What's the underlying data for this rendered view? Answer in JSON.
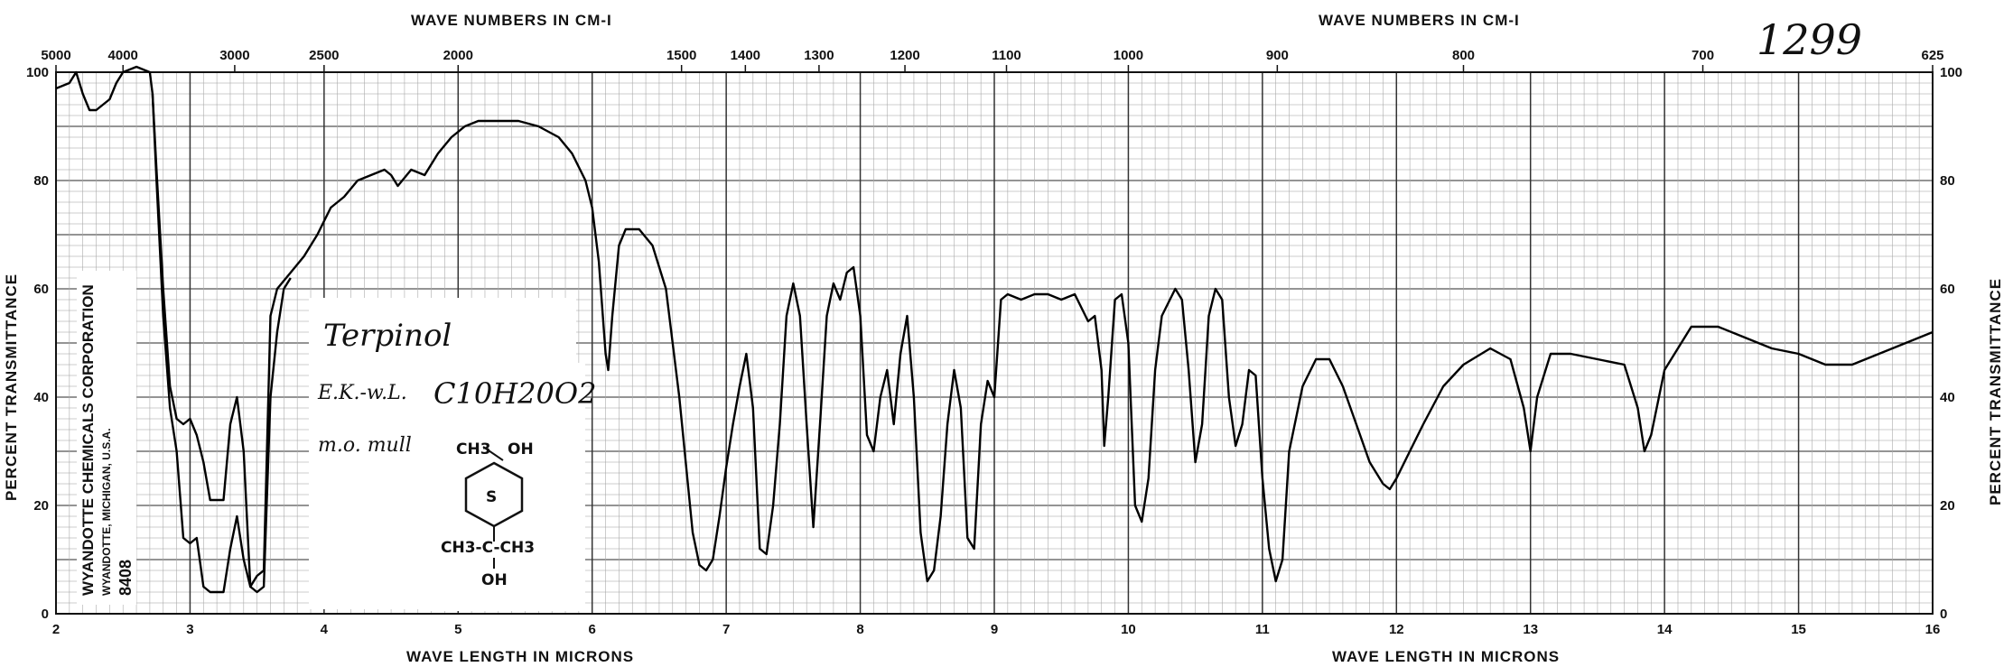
{
  "chart_data": {
    "type": "line",
    "title": "",
    "spectrum_number": "1299",
    "top_axis_title": "WAVE NUMBERS IN CM-I",
    "bottom_axis_title": "WAVE LENGTH IN MICRONS",
    "left_axis_title": "PERCENT TRANSMITTANCE",
    "right_axis_title": "PERCENT TRANSMITTANCE",
    "xlim": [
      2,
      16
    ],
    "ylim": [
      0,
      100
    ],
    "x_ticks": [
      "2",
      "3",
      "4",
      "5",
      "6",
      "7",
      "8",
      "9",
      "10",
      "11",
      "12",
      "13",
      "14",
      "15",
      "16"
    ],
    "y_ticks_left": [
      "0",
      "20",
      "40",
      "60",
      "80",
      "100"
    ],
    "y_ticks_right": [
      "0",
      "20",
      "40",
      "60",
      "80",
      "100"
    ],
    "top_ticks": [
      {
        "label": "5000",
        "wn": 5000
      },
      {
        "label": "4000",
        "wn": 4000
      },
      {
        "label": "3000",
        "wn": 3000
      },
      {
        "label": "2500",
        "wn": 2500
      },
      {
        "label": "2000",
        "wn": 2000
      },
      {
        "label": "1500",
        "wn": 1500
      },
      {
        "label": "1400",
        "wn": 1400
      },
      {
        "label": "1300",
        "wn": 1300
      },
      {
        "label": "1200",
        "wn": 1200
      },
      {
        "label": "1100",
        "wn": 1100
      },
      {
        "label": "1000",
        "wn": 1000
      },
      {
        "label": "900",
        "wn": 900
      },
      {
        "label": "800",
        "wn": 800
      },
      {
        "label": "700",
        "wn": 700
      },
      {
        "label": "625",
        "wn": 625
      }
    ],
    "annotation": {
      "compound": "Terpinol",
      "note1": "E.K.-w.L.",
      "formula": "C10H20O2",
      "note2": "m.o. mull",
      "struct_top": "CH3",
      "struct_oh": "OH",
      "struct_ring": "S",
      "struct_bottom": "CH3-C-CH3",
      "struct_bottom_oh": "OH"
    },
    "vendor": {
      "line1": "WYANDOTTE CHEMICALS CORPORATION",
      "line2": "WYANDOTTE, MICHIGAN, U.S.A.",
      "code": "8408"
    },
    "series": [
      {
        "points": [
          [
            2.0,
            97
          ],
          [
            2.1,
            98
          ],
          [
            2.15,
            100
          ],
          [
            2.2,
            96
          ],
          [
            2.25,
            93
          ],
          [
            2.3,
            93
          ],
          [
            2.4,
            95
          ],
          [
            2.45,
            98
          ],
          [
            2.5,
            100
          ],
          [
            2.6,
            101
          ],
          [
            2.7,
            100
          ],
          [
            2.72,
            96
          ],
          [
            2.75,
            80
          ],
          [
            2.8,
            55
          ],
          [
            2.85,
            38
          ],
          [
            2.9,
            30
          ],
          [
            2.95,
            14
          ],
          [
            3.0,
            13
          ],
          [
            3.05,
            14
          ],
          [
            3.1,
            5
          ],
          [
            3.15,
            4
          ],
          [
            3.2,
            4
          ],
          [
            3.25,
            4
          ],
          [
            3.3,
            12
          ],
          [
            3.35,
            18
          ],
          [
            3.4,
            10
          ],
          [
            3.45,
            5
          ],
          [
            3.5,
            7
          ],
          [
            3.55,
            8
          ],
          [
            3.6,
            55
          ],
          [
            3.65,
            60
          ],
          [
            3.75,
            63
          ],
          [
            3.85,
            66
          ],
          [
            3.95,
            70
          ],
          [
            4.05,
            75
          ],
          [
            4.15,
            77
          ],
          [
            4.25,
            80
          ],
          [
            4.35,
            81
          ],
          [
            4.45,
            82
          ],
          [
            4.5,
            81
          ],
          [
            4.55,
            79
          ],
          [
            4.65,
            82
          ],
          [
            4.75,
            81
          ],
          [
            4.85,
            85
          ],
          [
            4.95,
            88
          ],
          [
            5.05,
            90
          ],
          [
            5.15,
            91
          ],
          [
            5.3,
            91
          ],
          [
            5.45,
            91
          ],
          [
            5.6,
            90
          ],
          [
            5.75,
            88
          ],
          [
            5.85,
            85
          ],
          [
            5.95,
            80
          ],
          [
            6.0,
            75
          ],
          [
            6.05,
            65
          ],
          [
            6.1,
            48
          ],
          [
            6.12,
            45
          ],
          [
            6.15,
            55
          ],
          [
            6.2,
            68
          ],
          [
            6.25,
            71
          ],
          [
            6.35,
            71
          ],
          [
            6.45,
            68
          ],
          [
            6.55,
            60
          ],
          [
            6.65,
            40
          ],
          [
            6.75,
            15
          ],
          [
            6.8,
            9
          ],
          [
            6.85,
            8
          ],
          [
            6.9,
            10
          ],
          [
            6.95,
            18
          ],
          [
            7.0,
            27
          ],
          [
            7.05,
            35
          ],
          [
            7.1,
            42
          ],
          [
            7.15,
            48
          ],
          [
            7.2,
            38
          ],
          [
            7.25,
            12
          ],
          [
            7.3,
            11
          ],
          [
            7.35,
            20
          ],
          [
            7.4,
            35
          ],
          [
            7.45,
            55
          ],
          [
            7.5,
            61
          ],
          [
            7.55,
            55
          ],
          [
            7.6,
            35
          ],
          [
            7.65,
            16
          ],
          [
            7.7,
            35
          ],
          [
            7.75,
            55
          ],
          [
            7.8,
            61
          ],
          [
            7.85,
            58
          ],
          [
            7.9,
            63
          ],
          [
            7.95,
            64
          ],
          [
            8.0,
            55
          ],
          [
            8.05,
            33
          ],
          [
            8.1,
            30
          ],
          [
            8.15,
            40
          ],
          [
            8.2,
            45
          ],
          [
            8.25,
            35
          ],
          [
            8.3,
            48
          ],
          [
            8.35,
            55
          ],
          [
            8.4,
            40
          ],
          [
            8.45,
            15
          ],
          [
            8.5,
            6
          ],
          [
            8.55,
            8
          ],
          [
            8.6,
            18
          ],
          [
            8.65,
            35
          ],
          [
            8.7,
            45
          ],
          [
            8.75,
            38
          ],
          [
            8.8,
            14
          ],
          [
            8.85,
            12
          ],
          [
            8.9,
            35
          ],
          [
            8.95,
            43
          ],
          [
            9.0,
            40
          ],
          [
            9.05,
            58
          ],
          [
            9.1,
            59
          ],
          [
            9.2,
            58
          ],
          [
            9.3,
            59
          ],
          [
            9.4,
            59
          ],
          [
            9.5,
            58
          ],
          [
            9.6,
            59
          ],
          [
            9.7,
            54
          ],
          [
            9.75,
            55
          ],
          [
            9.8,
            45
          ],
          [
            9.82,
            31
          ],
          [
            9.85,
            40
          ],
          [
            9.9,
            58
          ],
          [
            9.95,
            59
          ],
          [
            10.0,
            50
          ],
          [
            10.05,
            20
          ],
          [
            10.1,
            17
          ],
          [
            10.15,
            25
          ],
          [
            10.2,
            45
          ],
          [
            10.25,
            55
          ],
          [
            10.35,
            60
          ],
          [
            10.4,
            58
          ],
          [
            10.45,
            45
          ],
          [
            10.5,
            28
          ],
          [
            10.55,
            35
          ],
          [
            10.6,
            55
          ],
          [
            10.65,
            60
          ],
          [
            10.7,
            58
          ],
          [
            10.75,
            40
          ],
          [
            10.8,
            31
          ],
          [
            10.85,
            35
          ],
          [
            10.9,
            45
          ],
          [
            10.95,
            44
          ],
          [
            11.0,
            25
          ],
          [
            11.05,
            12
          ],
          [
            11.1,
            6
          ],
          [
            11.15,
            10
          ],
          [
            11.2,
            30
          ],
          [
            11.3,
            42
          ],
          [
            11.4,
            47
          ],
          [
            11.5,
            47
          ],
          [
            11.6,
            42
          ],
          [
            11.7,
            35
          ],
          [
            11.8,
            28
          ],
          [
            11.9,
            24
          ],
          [
            11.95,
            23
          ],
          [
            12.0,
            25
          ],
          [
            12.1,
            30
          ],
          [
            12.2,
            35
          ],
          [
            12.35,
            42
          ],
          [
            12.5,
            46
          ],
          [
            12.7,
            49
          ],
          [
            12.85,
            47
          ],
          [
            12.95,
            38
          ],
          [
            13.0,
            30
          ],
          [
            13.05,
            40
          ],
          [
            13.15,
            48
          ],
          [
            13.3,
            48
          ],
          [
            13.5,
            47
          ],
          [
            13.7,
            46
          ],
          [
            13.8,
            38
          ],
          [
            13.85,
            30
          ],
          [
            13.9,
            33
          ],
          [
            14.0,
            45
          ],
          [
            14.2,
            53
          ],
          [
            14.4,
            53
          ],
          [
            14.6,
            51
          ],
          [
            14.8,
            49
          ],
          [
            15.0,
            48
          ],
          [
            15.2,
            46
          ],
          [
            15.4,
            46
          ],
          [
            15.6,
            48
          ],
          [
            15.8,
            50
          ],
          [
            16.0,
            52
          ]
        ]
      },
      {
        "points": [
          [
            2.72,
            96
          ],
          [
            2.75,
            82
          ],
          [
            2.8,
            60
          ],
          [
            2.85,
            42
          ],
          [
            2.9,
            36
          ],
          [
            2.95,
            35
          ],
          [
            3.0,
            36
          ],
          [
            3.05,
            33
          ],
          [
            3.1,
            28
          ],
          [
            3.15,
            21
          ],
          [
            3.2,
            21
          ],
          [
            3.25,
            21
          ],
          [
            3.3,
            35
          ],
          [
            3.35,
            40
          ],
          [
            3.4,
            30
          ],
          [
            3.45,
            5
          ],
          [
            3.5,
            4
          ],
          [
            3.55,
            5
          ],
          [
            3.6,
            40
          ],
          [
            3.65,
            52
          ],
          [
            3.7,
            60
          ],
          [
            3.75,
            62
          ]
        ]
      }
    ]
  }
}
